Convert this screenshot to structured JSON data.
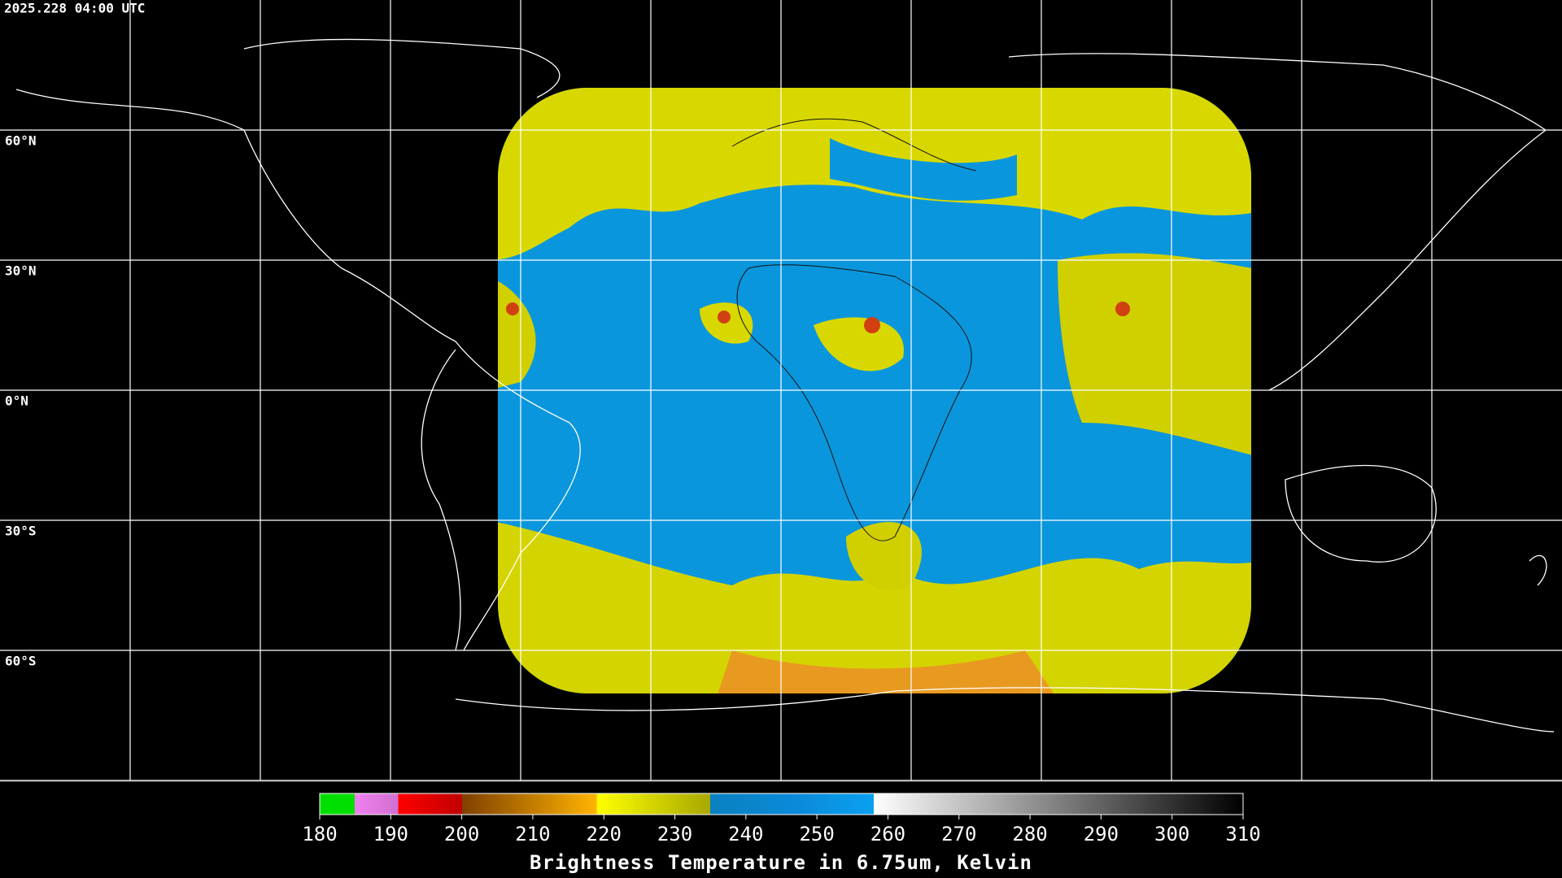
{
  "header": {
    "timestamp": "2025.228 04:00 UTC"
  },
  "map": {
    "latitude_labels": [
      "60°N",
      "30°N",
      "0°N",
      "30°S",
      "60°S"
    ]
  },
  "colorbar": {
    "ticks": [
      180,
      190,
      200,
      210,
      220,
      230,
      240,
      250,
      260,
      270,
      280,
      290,
      300,
      310
    ],
    "title": "Brightness Temperature in 6.75um, Kelvin"
  }
}
